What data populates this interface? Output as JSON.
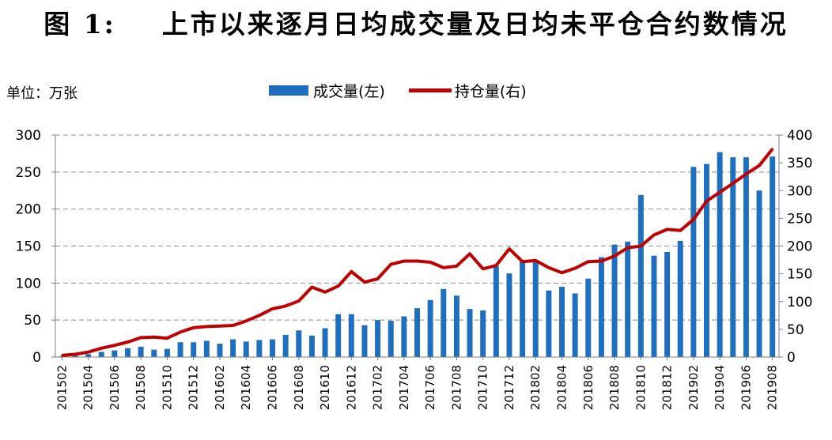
{
  "chart_data": {
    "type": "bar",
    "title": "图 1:    上市以来逐月日均成交量及日均未平仓合约数情况",
    "unit": "单位：万张",
    "x": [
      "201502",
      "201503",
      "201504",
      "201505",
      "201506",
      "201507",
      "201508",
      "201509",
      "201510",
      "201511",
      "201512",
      "201601",
      "201602",
      "201603",
      "201604",
      "201605",
      "201606",
      "201607",
      "201608",
      "201609",
      "201610",
      "201611",
      "201612",
      "201701",
      "201702",
      "201703",
      "201704",
      "201705",
      "201706",
      "201707",
      "201708",
      "201709",
      "201710",
      "201711",
      "201712",
      "201801",
      "201802",
      "201803",
      "201804",
      "201805",
      "201806",
      "201807",
      "201808",
      "201809",
      "201810",
      "201811",
      "201812",
      "201901",
      "201902",
      "201903",
      "201904",
      "201905",
      "201906",
      "201907",
      "201908"
    ],
    "x_tick_labels": [
      "201502",
      "201504",
      "201506",
      "201508",
      "201510",
      "201512",
      "201602",
      "201604",
      "201606",
      "201608",
      "201610",
      "201612",
      "201702",
      "201704",
      "201706",
      "201708",
      "201710",
      "201712",
      "201802",
      "201804",
      "201806",
      "201808",
      "201810",
      "201812",
      "201902",
      "201904",
      "201906",
      "201908"
    ],
    "series": [
      {
        "name": "成交量(左)",
        "type": "bar",
        "axis": "left",
        "color": "#1f6fbf",
        "values": [
          1,
          3,
          4,
          7,
          9,
          12,
          14,
          10,
          11,
          20,
          20,
          22,
          18,
          24,
          21,
          23,
          24,
          30,
          36,
          29,
          39,
          58,
          58,
          43,
          50,
          49,
          55,
          66,
          77,
          92,
          83,
          65,
          63,
          123,
          113,
          129,
          130,
          90,
          95,
          86,
          106,
          135,
          152,
          156,
          219,
          137,
          142,
          157,
          257,
          261,
          277,
          270,
          270,
          225,
          271
        ]
      },
      {
        "name": "持仓量(右)",
        "type": "line",
        "axis": "right",
        "color": "#c00000",
        "values": [
          3,
          5,
          9,
          16,
          21,
          27,
          35,
          36,
          34,
          45,
          53,
          55,
          56,
          57,
          65,
          75,
          87,
          92,
          101,
          126,
          117,
          128,
          154,
          135,
          141,
          167,
          173,
          173,
          171,
          161,
          164,
          186,
          159,
          165,
          195,
          172,
          174,
          161,
          152,
          160,
          172,
          173,
          182,
          197,
          200,
          220,
          230,
          228,
          248,
          281,
          297,
          313,
          330,
          345,
          375
        ]
      }
    ],
    "ylim_left": [
      0,
      300
    ],
    "yticks_left": [
      0,
      50,
      100,
      150,
      200,
      250,
      300
    ],
    "ylim_right": [
      0,
      400
    ],
    "yticks_right": [
      0,
      50,
      100,
      150,
      200,
      250,
      300,
      350,
      400
    ],
    "grid": "horizontal dashed",
    "legend_position": "top-center"
  }
}
